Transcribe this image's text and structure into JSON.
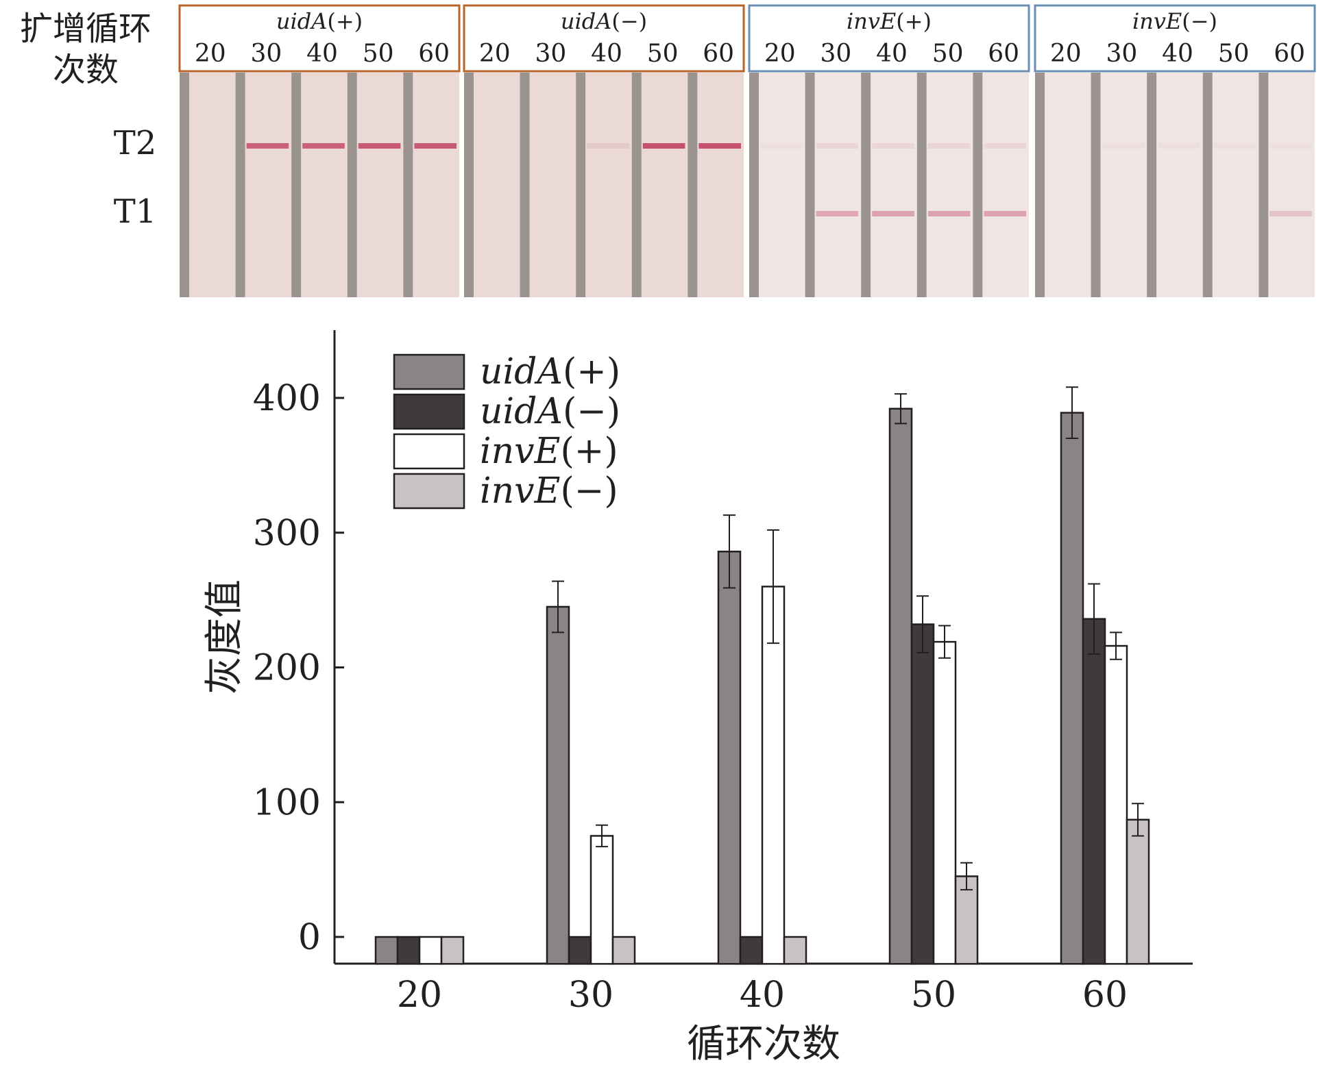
{
  "strip_panel": {
    "row_header_label": "扩增循环次数",
    "line_labels": [
      "T2",
      "T1"
    ],
    "groups": [
      {
        "italic": "uidA",
        "suffix": "(+)",
        "border_color": "#b8642a",
        "lanes": [
          "20",
          "30",
          "40",
          "50",
          "60"
        ],
        "t2_bands": [
          0,
          0.85,
          0.85,
          0.9,
          0.9
        ],
        "t1_bands": [
          0,
          0,
          0,
          0,
          0
        ]
      },
      {
        "italic": "uidA",
        "suffix": "(−)",
        "border_color": "#b8642a",
        "lanes": [
          "20",
          "30",
          "40",
          "50",
          "60"
        ],
        "t2_bands": [
          0,
          0,
          0.1,
          0.95,
          0.95
        ],
        "t1_bands": [
          0,
          0,
          0,
          0,
          0
        ]
      },
      {
        "italic": "invE",
        "suffix": "(+)",
        "border_color": "#6a8fb5",
        "lanes": [
          "20",
          "30",
          "40",
          "50",
          "60"
        ],
        "t2_bands": [
          0.05,
          0.1,
          0.1,
          0.1,
          0.1
        ],
        "t1_bands": [
          0,
          0.55,
          0.6,
          0.6,
          0.6
        ]
      },
      {
        "italic": "invE",
        "suffix": "(−)",
        "border_color": "#6a8fb5",
        "lanes": [
          "20",
          "30",
          "40",
          "50",
          "60"
        ],
        "t2_bands": [
          0,
          0.05,
          0.05,
          0.05,
          0.05
        ],
        "t1_bands": [
          0,
          0,
          0,
          0,
          0.3
        ]
      }
    ]
  },
  "chart_data": {
    "type": "bar",
    "xlabel": "循环次数",
    "ylabel": "灰度值",
    "categories": [
      "20",
      "30",
      "40",
      "50",
      "60"
    ],
    "ylim": [
      -20,
      450
    ],
    "yticks": [
      0,
      100,
      200,
      300,
      400
    ],
    "legend_position": "top-left",
    "grid": false,
    "series": [
      {
        "name_italic": "uidA",
        "name_suffix": "(+)",
        "color": "#8a8486",
        "values": [
          0,
          245,
          286,
          392,
          389
        ],
        "errors": [
          0,
          19,
          27,
          11,
          19
        ]
      },
      {
        "name_italic": "uidA",
        "name_suffix": "(−)",
        "color": "#403a3b",
        "values": [
          0,
          0,
          0,
          232,
          236
        ],
        "errors": [
          0,
          0,
          0,
          21,
          26
        ]
      },
      {
        "name_italic": "invE",
        "name_suffix": "(+)",
        "color": "#ffffff",
        "values": [
          0,
          75,
          260,
          219,
          216
        ],
        "errors": [
          0,
          8,
          42,
          12,
          10
        ]
      },
      {
        "name_italic": "invE",
        "name_suffix": "(−)",
        "color": "#c8c2c3",
        "values": [
          0,
          0,
          0,
          45,
          87
        ],
        "errors": [
          0,
          0,
          0,
          10,
          12
        ]
      }
    ]
  }
}
